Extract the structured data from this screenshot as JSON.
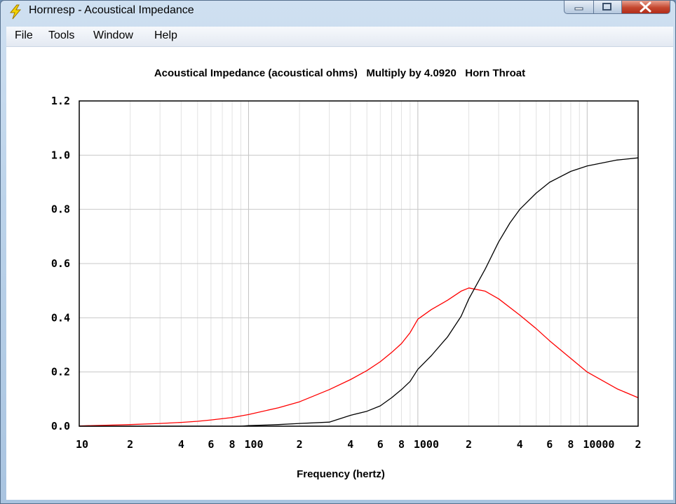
{
  "window": {
    "title": "Hornresp - Acoustical Impedance",
    "controls": [
      "minimize",
      "maximize",
      "close"
    ]
  },
  "menu": [
    "File",
    "Tools",
    "Window",
    "Help"
  ],
  "plot": {
    "title": "Acoustical Impedance (acoustical ohms)   Multiply by 4.0920   Horn Throat",
    "xlabel": "Frequency (hertz)"
  },
  "chart_data": {
    "type": "line",
    "title": "Acoustical Impedance (acoustical ohms)   Multiply by 4.0920   Horn Throat",
    "xlabel": "Frequency (hertz)",
    "ylabel": "",
    "xscale": "log",
    "xlim": [
      10,
      20000
    ],
    "ylim": [
      0,
      1.2
    ],
    "grid": true,
    "yticks": [
      "0.0",
      "0.2",
      "0.4",
      "0.6",
      "0.8",
      "1.0",
      "1.2"
    ],
    "xtick_labels": [
      "10",
      "2",
      "4",
      "6",
      "8",
      "100",
      "2",
      "4",
      "6",
      "8",
      "1000",
      "2",
      "4",
      "6",
      "8",
      "10000",
      "2"
    ],
    "xtick_values": [
      10,
      20,
      40,
      60,
      80,
      100,
      200,
      400,
      600,
      800,
      1000,
      2000,
      4000,
      6000,
      8000,
      10000,
      20000
    ],
    "series": [
      {
        "color": "#ff0000",
        "x": [
          10,
          15,
          20,
          30,
          40,
          50,
          60,
          80,
          100,
          150,
          200,
          300,
          400,
          500,
          600,
          700,
          800,
          900,
          1000,
          1200,
          1500,
          1800,
          2000,
          2500,
          3000,
          4000,
          5000,
          6000,
          8000,
          10000,
          15000,
          20000
        ],
        "values": [
          0.001,
          0.004,
          0.006,
          0.01,
          0.014,
          0.018,
          0.023,
          0.032,
          0.043,
          0.068,
          0.09,
          0.135,
          0.172,
          0.205,
          0.238,
          0.272,
          0.305,
          0.345,
          0.395,
          0.43,
          0.465,
          0.498,
          0.51,
          0.498,
          0.47,
          0.41,
          0.36,
          0.315,
          0.25,
          0.2,
          0.138,
          0.105
        ]
      },
      {
        "color": "#000000",
        "x": [
          10,
          50,
          90,
          100,
          150,
          200,
          300,
          400,
          500,
          600,
          700,
          800,
          900,
          1000,
          1200,
          1500,
          1800,
          2000,
          2500,
          3000,
          3500,
          4000,
          5000,
          6000,
          8000,
          10000,
          15000,
          20000
        ],
        "values": [
          0.0,
          0.0,
          0.0,
          0.002,
          0.006,
          0.01,
          0.015,
          0.04,
          0.055,
          0.075,
          0.105,
          0.135,
          0.165,
          0.21,
          0.26,
          0.33,
          0.405,
          0.47,
          0.58,
          0.68,
          0.75,
          0.8,
          0.86,
          0.9,
          0.94,
          0.96,
          0.982,
          0.99
        ]
      }
    ]
  }
}
